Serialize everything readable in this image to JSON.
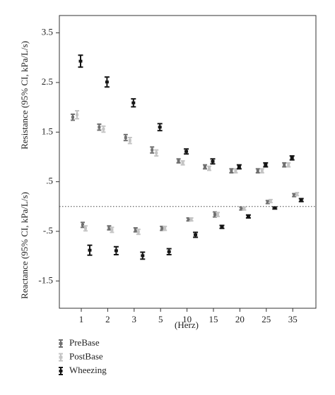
{
  "chart_data": {
    "type": "errorbar",
    "xlabel": "(Herz)",
    "ylabel_top": "Resistance (95% CI, kPa/L/s)",
    "ylabel_bottom": "Reactance (95% CI, kPa/L/s)",
    "categories": [
      "1",
      "2",
      "3",
      "5",
      "10",
      "15",
      "20",
      "25",
      "35"
    ],
    "ylim": [
      -2.05,
      3.85
    ],
    "yticks": [
      3.5,
      2.5,
      1.5,
      {
        "value": 0.5,
        "label": ".5"
      },
      {
        "value": -0.5,
        "label": "-.5"
      },
      -1.5
    ],
    "reference_line": 0,
    "series": [
      {
        "name": "PreBase",
        "color": "#707070",
        "resistance": [
          1.8,
          1.6,
          1.39,
          1.14,
          0.92,
          0.8,
          0.72,
          0.72,
          0.84
        ],
        "resistance_err": [
          0.06,
          0.06,
          0.06,
          0.06,
          0.04,
          0.04,
          0.04,
          0.04,
          0.04
        ],
        "reactance": [
          -0.37,
          -0.43,
          -0.47,
          -0.44,
          -0.26,
          -0.16,
          -0.04,
          0.09,
          0.23
        ],
        "reactance_err": [
          0.05,
          0.04,
          0.04,
          0.04,
          0.03,
          0.05,
          0.03,
          0.03,
          0.03
        ]
      },
      {
        "name": "PostBase",
        "color": "#c4c4c4",
        "resistance": [
          1.85,
          1.56,
          1.33,
          1.08,
          0.88,
          0.77,
          0.72,
          0.72,
          0.84
        ],
        "resistance_err": [
          0.08,
          0.06,
          0.06,
          0.06,
          0.04,
          0.04,
          0.04,
          0.04,
          0.04
        ],
        "reactance": [
          -0.44,
          -0.47,
          -0.51,
          -0.44,
          -0.26,
          -0.16,
          -0.04,
          0.11,
          0.25
        ],
        "reactance_err": [
          0.05,
          0.05,
          0.05,
          0.04,
          0.03,
          0.04,
          0.03,
          0.03,
          0.03
        ]
      },
      {
        "name": "Wheezing",
        "color": "#151515",
        "resistance": [
          2.93,
          2.51,
          2.09,
          1.6,
          1.11,
          0.91,
          0.8,
          0.84,
          0.98
        ],
        "resistance_err": [
          0.12,
          0.1,
          0.08,
          0.07,
          0.05,
          0.05,
          0.04,
          0.04,
          0.04
        ],
        "reactance": [
          -0.88,
          -0.89,
          -0.99,
          -0.91,
          -0.57,
          -0.41,
          -0.2,
          -0.03,
          0.13
        ],
        "reactance_err": [
          0.1,
          0.08,
          0.07,
          0.06,
          0.05,
          0.03,
          0.03,
          0.02,
          0.03
        ]
      }
    ]
  }
}
